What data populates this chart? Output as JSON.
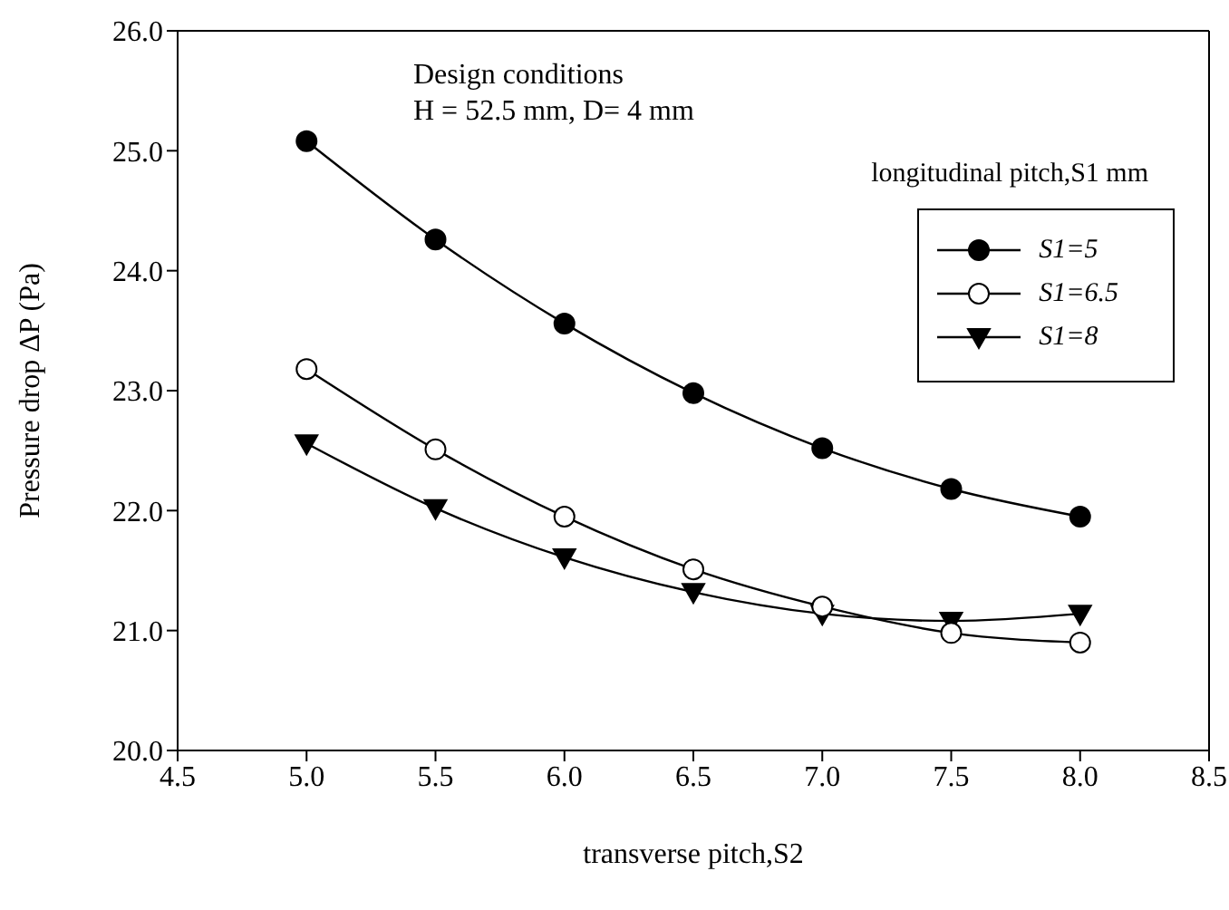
{
  "chart_data": {
    "type": "line",
    "xlabel": "transverse pitch,S2",
    "ylabel": "Pressure drop ΔP (Pa)",
    "legend_title": "longitudinal pitch,S1 mm",
    "annotations": [
      "Design conditions",
      "H = 52.5 mm, D= 4 mm"
    ],
    "x": [
      5.0,
      5.5,
      6.0,
      6.5,
      7.0,
      7.5,
      8.0
    ],
    "series": [
      {
        "name": "S1=5",
        "color": "#000000",
        "marker": "circle",
        "values": [
          25.08,
          24.26,
          23.56,
          22.98,
          22.52,
          22.18,
          21.95
        ]
      },
      {
        "name": "S1=6.5",
        "color": "#000000",
        "marker": "circle",
        "values": [
          23.18,
          22.51,
          21.95,
          21.51,
          21.2,
          20.98,
          20.9
        ]
      },
      {
        "name": "S1=8",
        "color": "#000000",
        "marker": "triangle",
        "values": [
          22.56,
          22.02,
          21.61,
          21.32,
          21.14,
          21.08,
          21.14
        ]
      }
    ],
    "xlim": [
      4.5,
      8.5
    ],
    "xticks": [
      {
        "value": 4.5,
        "label": "4.5"
      },
      {
        "value": 5.0,
        "label": "5.0"
      },
      {
        "value": 5.5,
        "label": "5.5"
      },
      {
        "value": 6.0,
        "label": "6.0"
      },
      {
        "value": 6.5,
        "label": "6.5"
      },
      {
        "value": 7.0,
        "label": "7.0"
      },
      {
        "value": 7.5,
        "label": "7.5"
      },
      {
        "value": 8.0,
        "label": "8.0"
      },
      {
        "value": 8.5,
        "label": "8.5"
      }
    ],
    "ylim": [
      20,
      26
    ],
    "yticks": [
      {
        "value": 20,
        "label": "20.0"
      },
      {
        "value": 21,
        "label": "21.0"
      },
      {
        "value": 22,
        "label": "22.0"
      },
      {
        "value": 23,
        "label": "23.0"
      },
      {
        "value": 24,
        "label": "24.0"
      },
      {
        "value": 25,
        "label": "25.0"
      },
      {
        "value": 26,
        "label": "26.0"
      }
    ],
    "grid": false,
    "legend": "top right",
    "line_style": "solid"
  }
}
